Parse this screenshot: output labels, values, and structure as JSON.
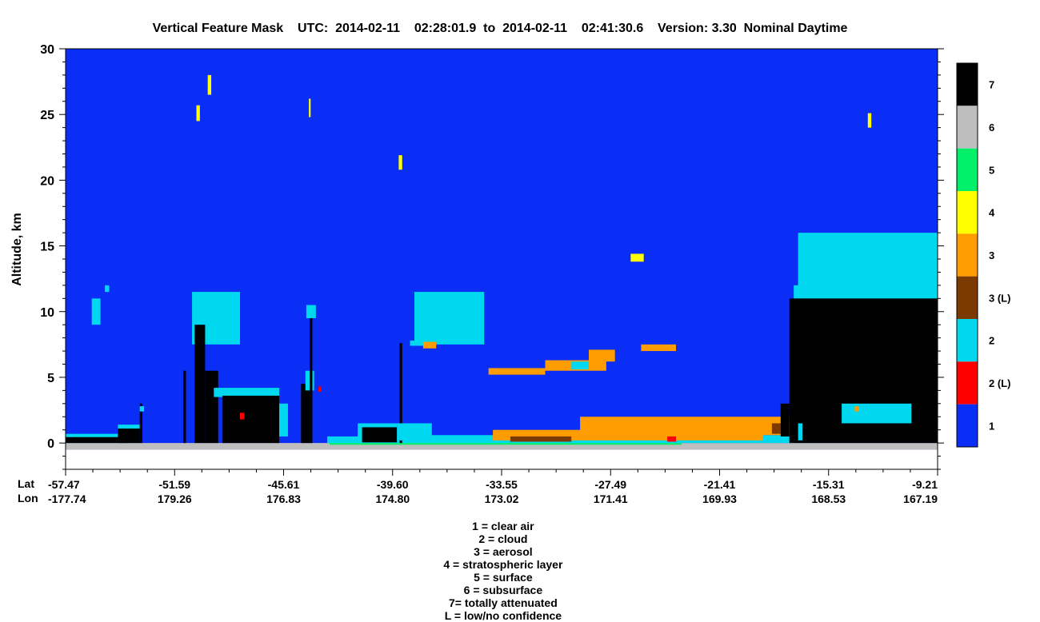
{
  "title": "Vertical Feature Mask    UTC:  2014-02-11    02:28:01.9  to  2014-02-11    02:41:30.6    Version: 3.30  Nominal Daytime",
  "ylabel": "Altitude, km",
  "row_labels": {
    "lat": "Lat",
    "lon": "Lon"
  },
  "legend_text": [
    "1 = clear air",
    "2 = cloud",
    "3 = aerosol",
    "4 = stratospheric layer",
    "5 = surface",
    "6 = subsurface",
    "7= totally attenuated",
    "L = low/no confidence"
  ],
  "colors": {
    "clear_air": "#0a2ef5",
    "cloud": "#00d8f0",
    "cloud_low": "#ff0000",
    "aerosol": "#ff9c00",
    "aerosol_low": "#7a3a00",
    "stratospheric": "#ffff00",
    "surface": "#00f06a",
    "subsurface": "#bebebe",
    "attenuated": "#000000"
  },
  "chart_data": {
    "type": "heatmap",
    "title": "Vertical Feature Mask    UTC:  2014-02-11    02:28:01.9  to  2014-02-11    02:41:30.6    Version: 3.30  Nominal Daytime",
    "ylabel": "Altitude, km",
    "ylim": [
      -2,
      30
    ],
    "yticks": [
      0,
      5,
      10,
      15,
      20,
      25,
      30
    ],
    "x_ticks": [
      {
        "lat": "-57.47",
        "lon": "-177.74"
      },
      {
        "lat": "-51.59",
        "lon": "179.26"
      },
      {
        "lat": "-45.61",
        "lon": "176.83"
      },
      {
        "lat": "-39.60",
        "lon": "174.80"
      },
      {
        "lat": "-33.55",
        "lon": "173.02"
      },
      {
        "lat": "-27.49",
        "lon": "171.41"
      },
      {
        "lat": "-21.41",
        "lon": "169.93"
      },
      {
        "lat": "-15.31",
        "lon": "168.53"
      },
      {
        "lat": "-9.21",
        "lon": "167.19"
      }
    ],
    "colorbar": [
      {
        "label": "7",
        "color": "#000000"
      },
      {
        "label": "6",
        "color": "#bebebe"
      },
      {
        "label": "5",
        "color": "#00f06a"
      },
      {
        "label": "4",
        "color": "#ffff00"
      },
      {
        "label": "3",
        "color": "#ff9c00"
      },
      {
        "label": "3 (L)",
        "color": "#7a3a00"
      },
      {
        "label": "2",
        "color": "#00d8f0"
      },
      {
        "label": "2 (L)",
        "color": "#ff0000"
      },
      {
        "label": "1",
        "color": "#0a2ef5"
      }
    ]
  }
}
